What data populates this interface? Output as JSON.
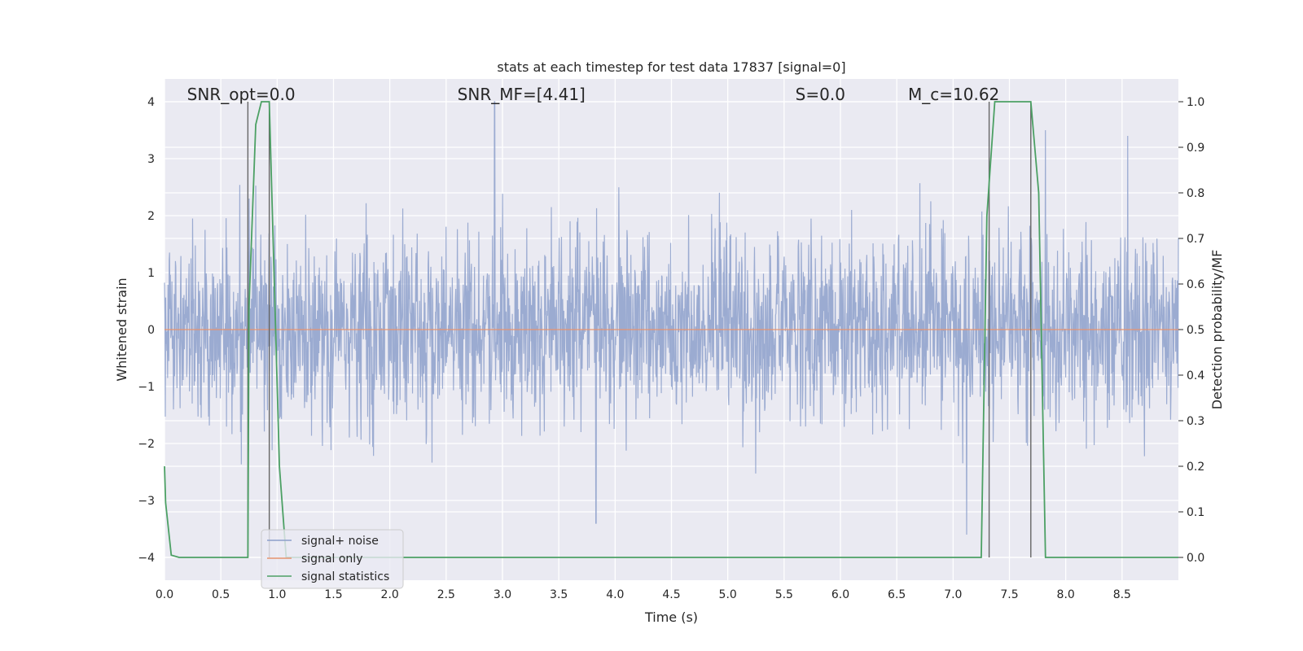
{
  "chart_data": {
    "type": "line",
    "title": "stats at each timestep for test data 17837 [signal=0]",
    "xlabel": "Time (s)",
    "ylabel": "Whitened strain",
    "y2label": "Detection probability/MF",
    "xlim": [
      0.0,
      9.0
    ],
    "ylim": [
      -4.4,
      4.4
    ],
    "y2lim": [
      -0.05,
      1.05
    ],
    "xticks": [
      "0.0",
      "0.5",
      "1.0",
      "1.5",
      "2.0",
      "2.5",
      "3.0",
      "3.5",
      "4.0",
      "4.5",
      "5.0",
      "5.5",
      "6.0",
      "6.5",
      "7.0",
      "7.5",
      "8.0",
      "8.5"
    ],
    "yticks": [
      "4",
      "3",
      "2",
      "1",
      "0",
      "−1",
      "−2",
      "−3",
      "−4"
    ],
    "y2ticks": [
      "1.0",
      "0.9",
      "0.8",
      "0.7",
      "0.6",
      "0.5",
      "0.4",
      "0.3",
      "0.2",
      "0.1",
      "0.0"
    ],
    "grid": true,
    "legend_position": "lower-left",
    "annotations": [
      {
        "text": "SNR_opt=0.0",
        "x": 0.2
      },
      {
        "text": "SNR_MF=[4.41]",
        "x": 2.6
      },
      {
        "text": "S=0.0",
        "x": 5.6
      },
      {
        "text": "M_c=10.62",
        "x": 6.6
      }
    ],
    "vlines": [
      0.74,
      0.93,
      7.32,
      7.69
    ],
    "series": [
      {
        "name": "signal+ noise",
        "color": "#8DA0CB",
        "noise_std": 0.8,
        "noise_peaks": [
          {
            "x": 2.93,
            "y": 4.0
          },
          {
            "x": 0.75,
            "y": 2.3
          },
          {
            "x": 7.12,
            "y": -3.6
          },
          {
            "x": 3.83,
            "y": -3.4
          },
          {
            "x": 7.82,
            "y": 3.5
          },
          {
            "x": 8.55,
            "y": 3.4
          }
        ]
      },
      {
        "name": "signal only",
        "color": "#E5936F",
        "values_note": "",
        "y": 0
      },
      {
        "name": "signal statistics",
        "color": "#4CA064",
        "axis": "right",
        "x": [
          0.0,
          0.01,
          0.06,
          0.13,
          0.74,
          0.75,
          0.81,
          0.86,
          0.93,
          1.02,
          1.08,
          7.25,
          7.3,
          7.37,
          7.69,
          7.76,
          7.82,
          9.0
        ],
        "y": [
          0.2,
          0.12,
          0.005,
          0.0,
          0.0,
          0.55,
          0.95,
          1.0,
          1.0,
          0.2,
          0.0,
          0.0,
          0.75,
          1.0,
          1.0,
          0.8,
          0.0,
          0.0
        ]
      }
    ]
  }
}
